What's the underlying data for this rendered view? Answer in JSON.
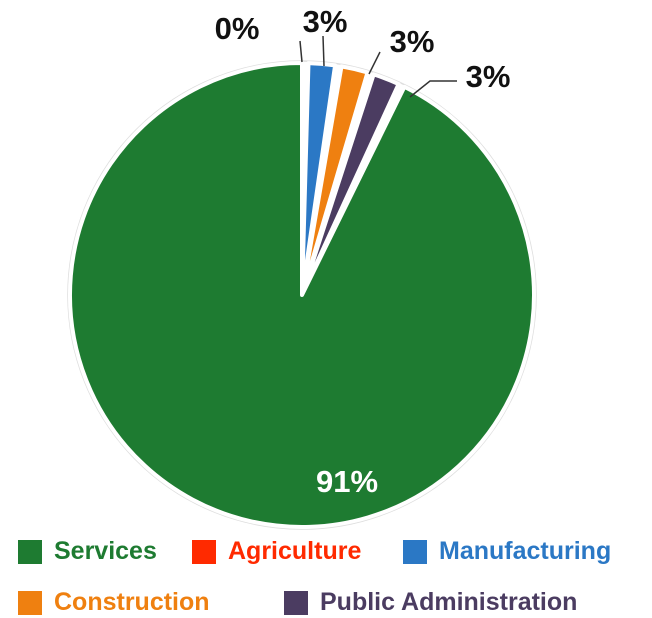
{
  "chart_data": {
    "type": "pie",
    "title": "",
    "slices": [
      {
        "name": "Services",
        "value": 91,
        "label": "91%",
        "color": "#1e7b31"
      },
      {
        "name": "Agriculture",
        "value": 0,
        "label": "0%",
        "color": "#ff2a00"
      },
      {
        "name": "Manufacturing",
        "value": 3,
        "label": "3%",
        "color": "#2b78c5"
      },
      {
        "name": "Construction",
        "value": 3,
        "label": "3%",
        "color": "#ef8010"
      },
      {
        "name": "Public Administration",
        "value": 3,
        "label": "3%",
        "color": "#4b3c61"
      }
    ],
    "legend_position": "bottom"
  }
}
